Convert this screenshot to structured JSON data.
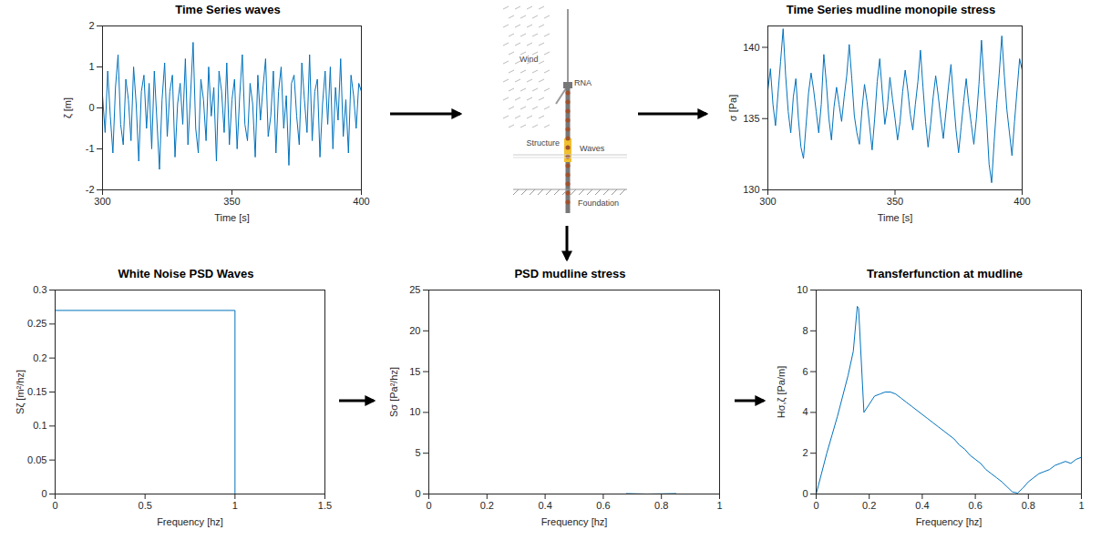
{
  "chart_data": [
    {
      "type": "line",
      "title": "Time Series waves",
      "xlabel": "Time [s]",
      "ylabel": "ζ [m]",
      "color": "#0072bd",
      "xlim": [
        300,
        400
      ],
      "xticks": [
        300,
        350,
        400
      ],
      "ylim": [
        -2,
        2
      ],
      "yticks": [
        -2,
        -1,
        0,
        1,
        2
      ],
      "grid": false,
      "x": [
        300,
        301,
        302,
        303,
        304,
        305,
        306,
        307,
        308,
        309,
        310,
        311,
        312,
        313,
        314,
        315,
        316,
        317,
        318,
        319,
        320,
        321,
        322,
        323,
        324,
        325,
        326,
        327,
        328,
        329,
        330,
        331,
        332,
        333,
        334,
        335,
        336,
        337,
        338,
        339,
        340,
        341,
        342,
        343,
        344,
        345,
        346,
        347,
        348,
        349,
        350,
        351,
        352,
        353,
        354,
        355,
        356,
        357,
        358,
        359,
        360,
        361,
        362,
        363,
        364,
        365,
        366,
        367,
        368,
        369,
        370,
        371,
        372,
        373,
        374,
        375,
        376,
        377,
        378,
        379,
        380,
        381,
        382,
        383,
        384,
        385,
        386,
        387,
        388,
        389,
        390,
        391,
        392,
        393,
        394,
        395,
        396,
        397,
        398,
        399,
        400
      ],
      "values": [
        0.3,
        -0.6,
        0.9,
        -0.2,
        -1.1,
        0.5,
        1.3,
        -0.4,
        -0.9,
        0.7,
        0.2,
        -0.8,
        1.0,
        0.1,
        -1.3,
        0.4,
        0.8,
        -0.5,
        0.6,
        -1.0,
        0.9,
        -0.3,
        -1.5,
        0.2,
        1.1,
        -0.7,
        0.4,
        0.8,
        -1.2,
        0.1,
        0.6,
        -0.4,
        1.2,
        -0.9,
        0.3,
        1.6,
        -0.5,
        -1.1,
        0.7,
        0.2,
        -0.8,
        1.0,
        -0.2,
        0.5,
        -1.3,
        0.9,
        0.4,
        -0.6,
        1.1,
        -0.9,
        0.2,
        0.7,
        -1.0,
        0.3,
        1.3,
        -0.4,
        -0.8,
        0.6,
        0.1,
        -1.2,
        0.8,
        -0.3,
        0.5,
        1.2,
        -0.7,
        -0.2,
        0.9,
        -1.1,
        0.4,
        1.0,
        -0.5,
        0.3,
        -1.4,
        0.6,
        0.8,
        -0.2,
        -0.9,
        1.1,
        0.2,
        -0.6,
        1.3,
        -0.8,
        0.4,
        0.7,
        -1.2,
        0.1,
        0.9,
        -0.4,
        1.0,
        -1.0,
        0.5,
        -0.3,
        1.2,
        -0.7,
        0.2,
        -1.1,
        0.8,
        0.3,
        -0.5,
        0.6,
        0.4
      ]
    },
    {
      "type": "line",
      "title": "Time Series mudline monopile stress",
      "xlabel": "Time [s]",
      "ylabel": "σ [Pa]",
      "color": "#0072bd",
      "xlim": [
        300,
        400
      ],
      "xticks": [
        300,
        350,
        400
      ],
      "ylim": [
        130,
        141.5
      ],
      "yticks": [
        130,
        135,
        140
      ],
      "grid": false,
      "x": [
        300,
        301,
        302,
        303,
        304,
        305,
        306,
        307,
        308,
        309,
        310,
        311,
        312,
        313,
        314,
        315,
        316,
        317,
        318,
        319,
        320,
        321,
        322,
        323,
        324,
        325,
        326,
        327,
        328,
        329,
        330,
        331,
        332,
        333,
        334,
        335,
        336,
        337,
        338,
        339,
        340,
        341,
        342,
        343,
        344,
        345,
        346,
        347,
        348,
        349,
        350,
        351,
        352,
        353,
        354,
        355,
        356,
        357,
        358,
        359,
        360,
        361,
        362,
        363,
        364,
        365,
        366,
        367,
        368,
        369,
        370,
        371,
        372,
        373,
        374,
        375,
        376,
        377,
        378,
        379,
        380,
        381,
        382,
        383,
        384,
        385,
        386,
        387,
        388,
        389,
        390,
        391,
        392,
        393,
        394,
        395,
        396,
        397,
        398,
        399,
        400
      ],
      "values": [
        137,
        138.5,
        136,
        134.5,
        136.8,
        139,
        141.3,
        138,
        135.5,
        134,
        136.5,
        137.8,
        135,
        133,
        132.2,
        134.5,
        136.8,
        138.2,
        137,
        135.5,
        134,
        136,
        139.5,
        137.5,
        135,
        133.5,
        135.8,
        137.2,
        136,
        134.8,
        136.5,
        138,
        140.2,
        137.8,
        135.2,
        134,
        133.2,
        135.6,
        137.4,
        136.2,
        134.5,
        132.8,
        135,
        137.6,
        139.2,
        136.8,
        134.6,
        135.8,
        137.9,
        136.4,
        135,
        133.5,
        134.8,
        136.9,
        138.4,
        137,
        135.3,
        134.2,
        136,
        137.6,
        139.8,
        137.2,
        134.8,
        133,
        134.6,
        136.5,
        138,
        136.6,
        135,
        133.6,
        135.4,
        137.2,
        138.8,
        136.4,
        134.2,
        132.6,
        134.4,
        136.2,
        137.8,
        136,
        134.6,
        133.2,
        135,
        137.4,
        140.5,
        137.6,
        135,
        131.8,
        130.5,
        133.4,
        136,
        138.2,
        140.8,
        138,
        135.6,
        134,
        132.4,
        134.8,
        137,
        139.2,
        138.4
      ]
    },
    {
      "type": "line",
      "title": "White Noise PSD Waves",
      "xlabel": "Frequency [hz]",
      "ylabel": "Sζ [m²/hz]",
      "color": "#0072bd",
      "xlim": [
        0,
        1.5
      ],
      "xticks": [
        0,
        0.5,
        1,
        1.5
      ],
      "ylim": [
        0,
        0.3
      ],
      "yticks": [
        0,
        0.05,
        0.1,
        0.15,
        0.2,
        0.25,
        0.3
      ],
      "grid": false,
      "x": [
        0,
        0,
        1,
        1,
        1.35
      ],
      "values": [
        0,
        0.27,
        0.27,
        0,
        0
      ]
    },
    {
      "type": "line",
      "title": "PSD mudline stress",
      "xlabel": "Frequency [hz]",
      "ylabel": "Sσ [Pa²/hz]",
      "color": "#0072bd",
      "xlim": [
        0,
        1
      ],
      "xticks": [
        0,
        0.2,
        0.4,
        0.6,
        0.8,
        1
      ],
      "ylim": [
        0,
        25
      ],
      "yticks": [
        0,
        5,
        10,
        15,
        20,
        25
      ],
      "grid": false,
      "x": [
        0.68,
        0.75,
        0.85
      ],
      "values": [
        0.05,
        0,
        0.05
      ]
    },
    {
      "type": "line",
      "title": "Transferfunction at mudline",
      "xlabel": "Frequency [hz]",
      "ylabel": "Hσ,ζ [Pa/m]",
      "color": "#0072bd",
      "xlim": [
        0,
        1
      ],
      "xticks": [
        0,
        0.2,
        0.4,
        0.6,
        0.8,
        1
      ],
      "ylim": [
        0,
        10
      ],
      "yticks": [
        0,
        2,
        4,
        6,
        8,
        10
      ],
      "grid": false,
      "x": [
        0,
        0.02,
        0.04,
        0.06,
        0.08,
        0.1,
        0.12,
        0.14,
        0.155,
        0.16,
        0.18,
        0.2,
        0.22,
        0.24,
        0.26,
        0.28,
        0.3,
        0.32,
        0.34,
        0.36,
        0.38,
        0.4,
        0.42,
        0.44,
        0.46,
        0.48,
        0.5,
        0.52,
        0.54,
        0.56,
        0.58,
        0.6,
        0.62,
        0.64,
        0.66,
        0.68,
        0.7,
        0.72,
        0.74,
        0.76,
        0.78,
        0.8,
        0.82,
        0.84,
        0.86,
        0.88,
        0.9,
        0.92,
        0.94,
        0.96,
        0.98,
        1
      ],
      "values": [
        0,
        1.0,
        2.0,
        2.9,
        3.8,
        4.8,
        5.8,
        7.0,
        9.2,
        9.1,
        4.0,
        4.4,
        4.8,
        4.9,
        5.0,
        5.0,
        4.9,
        4.7,
        4.5,
        4.3,
        4.1,
        3.9,
        3.7,
        3.5,
        3.3,
        3.1,
        2.9,
        2.7,
        2.4,
        2.2,
        1.9,
        1.7,
        1.5,
        1.2,
        1.0,
        0.8,
        0.6,
        0.35,
        0.1,
        0.05,
        0.3,
        0.6,
        0.8,
        1.0,
        1.1,
        1.2,
        1.4,
        1.5,
        1.6,
        1.5,
        1.7,
        1.8
      ]
    }
  ],
  "diagram": {
    "labels": [
      "Wind",
      "RNA",
      "Structure",
      "Waves",
      "Foundation"
    ]
  }
}
